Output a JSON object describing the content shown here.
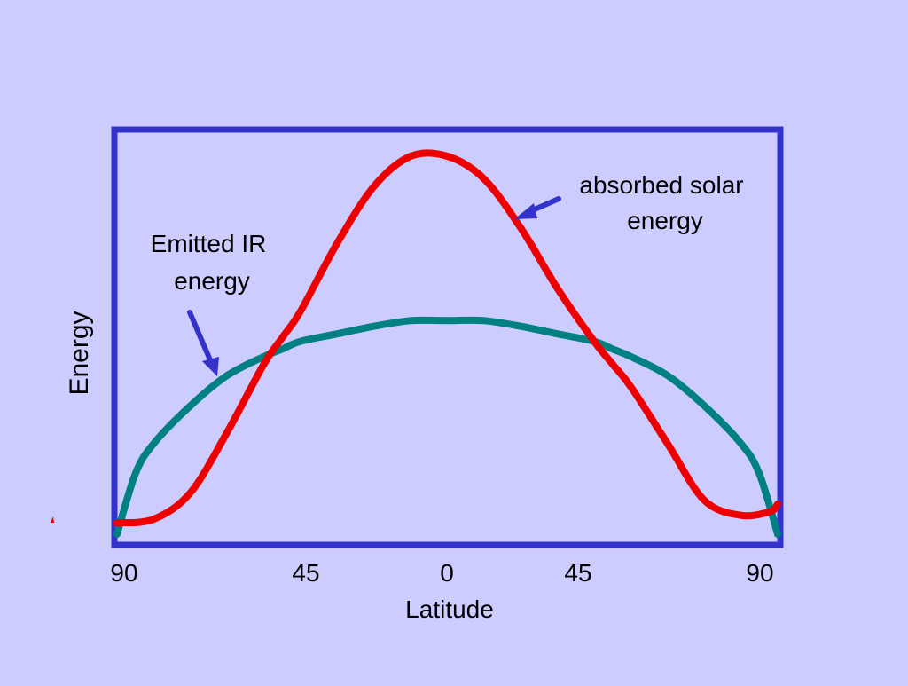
{
  "chart_data": {
    "type": "line",
    "xlabel": "Latitude",
    "ylabel": "Energy",
    "x_ticks": [
      "90",
      "45",
      "0",
      "45",
      "90"
    ],
    "x_tick_positions": [
      -90,
      -45,
      0,
      45,
      90
    ],
    "xlim": [
      -90,
      90
    ],
    "ylim": [
      0,
      1
    ],
    "grid": false,
    "series": [
      {
        "name": "absorbed solar energy",
        "color": "#ee0000",
        "x": [
          -90,
          -80,
          -70,
          -60,
          -50,
          -45,
          -40,
          -30,
          -20,
          -10,
          0,
          10,
          20,
          30,
          40,
          45,
          50,
          60,
          70,
          80,
          88,
          90
        ],
        "y": [
          0.03,
          0.04,
          0.11,
          0.27,
          0.45,
          0.52,
          0.59,
          0.77,
          0.92,
          1.0,
          1.0,
          0.94,
          0.81,
          0.65,
          0.51,
          0.45,
          0.39,
          0.24,
          0.09,
          0.05,
          0.06,
          0.08
        ]
      },
      {
        "name": "Emitted IR energy",
        "color": "#008080",
        "x": [
          -90,
          -85,
          -80,
          -70,
          -60,
          -50,
          -45,
          -40,
          -30,
          -20,
          -10,
          0,
          10,
          20,
          30,
          40,
          45,
          50,
          60,
          70,
          80,
          85,
          90
        ],
        "y": [
          0.0,
          0.16,
          0.24,
          0.34,
          0.42,
          0.47,
          0.49,
          0.51,
          0.53,
          0.55,
          0.565,
          0.565,
          0.565,
          0.55,
          0.53,
          0.51,
          0.49,
          0.47,
          0.42,
          0.34,
          0.24,
          0.16,
          0.0
        ]
      }
    ],
    "annotations": [
      {
        "id": "solar",
        "lines": [
          "absorbed solar",
          "energy"
        ]
      },
      {
        "id": "ir",
        "lines": [
          "Emitted IR",
          "energy"
        ]
      }
    ],
    "frame_color": "#3333cc",
    "arrow_color": "#3333cc"
  }
}
